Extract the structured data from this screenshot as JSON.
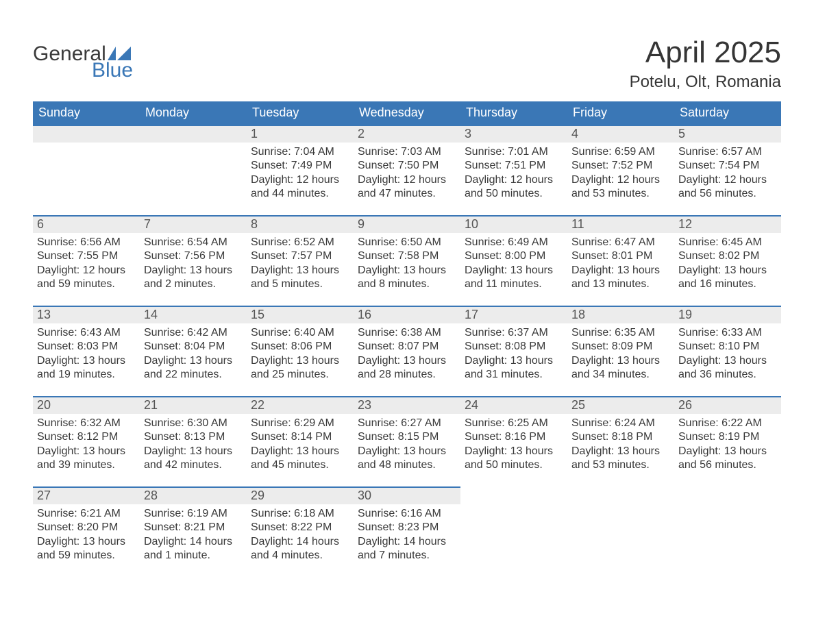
{
  "brand": {
    "word1": "General",
    "word2": "Blue"
  },
  "title": "April 2025",
  "location": "Potelu, Olt, Romania",
  "colors": {
    "header_bg": "#3a77b6",
    "header_text": "#ffffff",
    "daynum_bg": "#ececec",
    "daynum_border": "#3a77b6",
    "body_text": "#393939",
    "brand_blue": "#3a77b6"
  },
  "weekdays": [
    "Sunday",
    "Monday",
    "Tuesday",
    "Wednesday",
    "Thursday",
    "Friday",
    "Saturday"
  ],
  "weeks": [
    [
      {
        "n": "",
        "empty": true
      },
      {
        "n": "",
        "empty": true
      },
      {
        "n": "1",
        "sunrise": "Sunrise: 7:04 AM",
        "sunset": "Sunset: 7:49 PM",
        "daylight": "Daylight: 12 hours and 44 minutes."
      },
      {
        "n": "2",
        "sunrise": "Sunrise: 7:03 AM",
        "sunset": "Sunset: 7:50 PM",
        "daylight": "Daylight: 12 hours and 47 minutes."
      },
      {
        "n": "3",
        "sunrise": "Sunrise: 7:01 AM",
        "sunset": "Sunset: 7:51 PM",
        "daylight": "Daylight: 12 hours and 50 minutes."
      },
      {
        "n": "4",
        "sunrise": "Sunrise: 6:59 AM",
        "sunset": "Sunset: 7:52 PM",
        "daylight": "Daylight: 12 hours and 53 minutes."
      },
      {
        "n": "5",
        "sunrise": "Sunrise: 6:57 AM",
        "sunset": "Sunset: 7:54 PM",
        "daylight": "Daylight: 12 hours and 56 minutes."
      }
    ],
    [
      {
        "n": "6",
        "sunrise": "Sunrise: 6:56 AM",
        "sunset": "Sunset: 7:55 PM",
        "daylight": "Daylight: 12 hours and 59 minutes."
      },
      {
        "n": "7",
        "sunrise": "Sunrise: 6:54 AM",
        "sunset": "Sunset: 7:56 PM",
        "daylight": "Daylight: 13 hours and 2 minutes."
      },
      {
        "n": "8",
        "sunrise": "Sunrise: 6:52 AM",
        "sunset": "Sunset: 7:57 PM",
        "daylight": "Daylight: 13 hours and 5 minutes."
      },
      {
        "n": "9",
        "sunrise": "Sunrise: 6:50 AM",
        "sunset": "Sunset: 7:58 PM",
        "daylight": "Daylight: 13 hours and 8 minutes."
      },
      {
        "n": "10",
        "sunrise": "Sunrise: 6:49 AM",
        "sunset": "Sunset: 8:00 PM",
        "daylight": "Daylight: 13 hours and 11 minutes."
      },
      {
        "n": "11",
        "sunrise": "Sunrise: 6:47 AM",
        "sunset": "Sunset: 8:01 PM",
        "daylight": "Daylight: 13 hours and 13 minutes."
      },
      {
        "n": "12",
        "sunrise": "Sunrise: 6:45 AM",
        "sunset": "Sunset: 8:02 PM",
        "daylight": "Daylight: 13 hours and 16 minutes."
      }
    ],
    [
      {
        "n": "13",
        "sunrise": "Sunrise: 6:43 AM",
        "sunset": "Sunset: 8:03 PM",
        "daylight": "Daylight: 13 hours and 19 minutes."
      },
      {
        "n": "14",
        "sunrise": "Sunrise: 6:42 AM",
        "sunset": "Sunset: 8:04 PM",
        "daylight": "Daylight: 13 hours and 22 minutes."
      },
      {
        "n": "15",
        "sunrise": "Sunrise: 6:40 AM",
        "sunset": "Sunset: 8:06 PM",
        "daylight": "Daylight: 13 hours and 25 minutes."
      },
      {
        "n": "16",
        "sunrise": "Sunrise: 6:38 AM",
        "sunset": "Sunset: 8:07 PM",
        "daylight": "Daylight: 13 hours and 28 minutes."
      },
      {
        "n": "17",
        "sunrise": "Sunrise: 6:37 AM",
        "sunset": "Sunset: 8:08 PM",
        "daylight": "Daylight: 13 hours and 31 minutes."
      },
      {
        "n": "18",
        "sunrise": "Sunrise: 6:35 AM",
        "sunset": "Sunset: 8:09 PM",
        "daylight": "Daylight: 13 hours and 34 minutes."
      },
      {
        "n": "19",
        "sunrise": "Sunrise: 6:33 AM",
        "sunset": "Sunset: 8:10 PM",
        "daylight": "Daylight: 13 hours and 36 minutes."
      }
    ],
    [
      {
        "n": "20",
        "sunrise": "Sunrise: 6:32 AM",
        "sunset": "Sunset: 8:12 PM",
        "daylight": "Daylight: 13 hours and 39 minutes."
      },
      {
        "n": "21",
        "sunrise": "Sunrise: 6:30 AM",
        "sunset": "Sunset: 8:13 PM",
        "daylight": "Daylight: 13 hours and 42 minutes."
      },
      {
        "n": "22",
        "sunrise": "Sunrise: 6:29 AM",
        "sunset": "Sunset: 8:14 PM",
        "daylight": "Daylight: 13 hours and 45 minutes."
      },
      {
        "n": "23",
        "sunrise": "Sunrise: 6:27 AM",
        "sunset": "Sunset: 8:15 PM",
        "daylight": "Daylight: 13 hours and 48 minutes."
      },
      {
        "n": "24",
        "sunrise": "Sunrise: 6:25 AM",
        "sunset": "Sunset: 8:16 PM",
        "daylight": "Daylight: 13 hours and 50 minutes."
      },
      {
        "n": "25",
        "sunrise": "Sunrise: 6:24 AM",
        "sunset": "Sunset: 8:18 PM",
        "daylight": "Daylight: 13 hours and 53 minutes."
      },
      {
        "n": "26",
        "sunrise": "Sunrise: 6:22 AM",
        "sunset": "Sunset: 8:19 PM",
        "daylight": "Daylight: 13 hours and 56 minutes."
      }
    ],
    [
      {
        "n": "27",
        "sunrise": "Sunrise: 6:21 AM",
        "sunset": "Sunset: 8:20 PM",
        "daylight": "Daylight: 13 hours and 59 minutes."
      },
      {
        "n": "28",
        "sunrise": "Sunrise: 6:19 AM",
        "sunset": "Sunset: 8:21 PM",
        "daylight": "Daylight: 14 hours and 1 minute."
      },
      {
        "n": "29",
        "sunrise": "Sunrise: 6:18 AM",
        "sunset": "Sunset: 8:22 PM",
        "daylight": "Daylight: 14 hours and 4 minutes."
      },
      {
        "n": "30",
        "sunrise": "Sunrise: 6:16 AM",
        "sunset": "Sunset: 8:23 PM",
        "daylight": "Daylight: 14 hours and 7 minutes."
      },
      {
        "n": "",
        "empty": true,
        "noborder": true
      },
      {
        "n": "",
        "empty": true,
        "noborder": true
      },
      {
        "n": "",
        "empty": true,
        "noborder": true
      }
    ]
  ]
}
